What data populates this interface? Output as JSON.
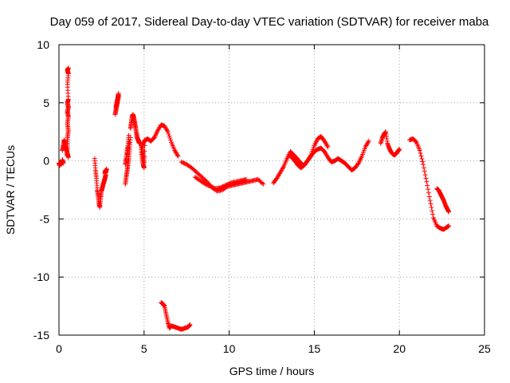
{
  "chart_data": {
    "type": "scatter",
    "title": "Day 059 of 2017, Sidereal Day-to-day VTEC variation (SDTVAR) for receiver maba",
    "xlabel": "GPS time / hours",
    "ylabel": "SDTVAR / TECUs",
    "xlim": [
      0,
      25
    ],
    "ylim": [
      -15,
      10
    ],
    "xticks": [
      0,
      5,
      10,
      15,
      20,
      25
    ],
    "yticks": [
      -15,
      -10,
      -5,
      0,
      5,
      10
    ],
    "xtick_labels": [
      "0",
      "5",
      "10",
      "15",
      "20",
      "25"
    ],
    "ytick_labels": [
      "-15",
      "-10",
      "-5",
      "0",
      "5",
      "10"
    ],
    "grid": true,
    "marker": "+",
    "marker_color": "#ff0000",
    "series": [
      {
        "name": "seg-a",
        "x": [
          0.0,
          0.05,
          0.1,
          0.15,
          0.2,
          0.25
        ],
        "y": [
          -0.2,
          -0.4,
          -0.1,
          -0.3,
          0.1,
          -0.2
        ]
      },
      {
        "name": "seg-b",
        "x": [
          0.2,
          0.25,
          0.3,
          0.35,
          0.4,
          0.45,
          0.5,
          0.55
        ],
        "y": [
          0.9,
          1.3,
          1.8,
          1.5,
          1.1,
          1.0,
          0.6,
          0.3
        ]
      },
      {
        "name": "seg-c",
        "x": [
          0.45,
          0.5,
          0.5,
          0.55,
          0.5,
          0.55,
          0.5,
          0.55,
          0.5,
          0.55,
          0.5,
          0.55,
          0.5,
          0.55
        ],
        "y": [
          0.5,
          1.2,
          2.0,
          2.6,
          3.2,
          3.8,
          4.2,
          4.6,
          5.0,
          5.3,
          6.6,
          7.5,
          7.8,
          8.0
        ]
      },
      {
        "name": "seg-d",
        "x": [
          2.1,
          2.15,
          2.2,
          2.25,
          2.3,
          2.35,
          2.4,
          2.45,
          2.5,
          2.55,
          2.6,
          2.65,
          2.7,
          2.75
        ],
        "y": [
          0.2,
          -0.8,
          -1.5,
          -2.5,
          -3.0,
          -3.6,
          -4.0,
          -3.2,
          -2.6,
          -2.3,
          -2.0,
          -1.8,
          -1.5,
          -1.2
        ]
      },
      {
        "name": "seg-e",
        "x": [
          2.7,
          2.75,
          2.8,
          2.7,
          2.75
        ],
        "y": [
          -0.9,
          -1.0,
          -0.7,
          -1.1,
          -0.8
        ]
      },
      {
        "name": "seg-f",
        "x": [
          3.3,
          3.35,
          3.4,
          3.45,
          3.5,
          3.35,
          3.4,
          3.45,
          3.5
        ],
        "y": [
          4.0,
          4.4,
          4.8,
          5.2,
          5.6,
          4.6,
          5.0,
          5.4,
          5.8
        ]
      },
      {
        "name": "seg-g",
        "x": [
          3.9,
          3.95,
          4.0,
          4.05,
          4.1,
          4.15,
          4.2,
          3.9,
          3.95,
          4.0,
          4.05,
          4.1
        ],
        "y": [
          -2.0,
          -1.4,
          -0.9,
          -0.4,
          0.2,
          1.0,
          2.0,
          -0.3,
          0.2,
          0.8,
          1.3,
          2.2
        ]
      },
      {
        "name": "seg-h",
        "x": [
          4.2,
          4.25,
          4.3,
          4.35,
          4.4,
          4.45,
          4.5,
          4.55,
          4.6,
          4.65,
          4.7,
          4.75
        ],
        "y": [
          2.8,
          3.3,
          3.8,
          4.0,
          3.7,
          3.3,
          2.9,
          2.4,
          2.0,
          1.8,
          1.6,
          1.5
        ]
      },
      {
        "name": "seg-i",
        "x": [
          4.8,
          4.85,
          4.9,
          4.95,
          5.0,
          5.05,
          4.9,
          4.95,
          5.0
        ],
        "y": [
          1.6,
          0.8,
          0.2,
          -0.3,
          -0.6,
          1.8,
          1.2,
          0.6,
          0.0
        ]
      },
      {
        "name": "seg-j",
        "x": [
          5.0,
          5.2,
          5.4,
          5.6,
          5.8,
          6.0,
          6.2,
          6.4,
          6.6,
          6.8,
          7.0
        ],
        "y": [
          1.7,
          1.9,
          1.7,
          2.0,
          2.6,
          3.1,
          3.0,
          2.5,
          1.6,
          0.9,
          0.4
        ]
      },
      {
        "name": "seg-k",
        "x": [
          7.2,
          7.5,
          7.8,
          8.1,
          8.4,
          8.7,
          9.0,
          9.3,
          9.6,
          9.9,
          10.2,
          10.5,
          10.8,
          11.1,
          11.4,
          11.7,
          12.0
        ],
        "y": [
          -0.1,
          -0.3,
          -0.6,
          -1.0,
          -1.4,
          -1.8,
          -2.3,
          -2.6,
          -2.5,
          -2.2,
          -2.1,
          -2.0,
          -1.9,
          -1.8,
          -1.7,
          -1.6,
          -2.0
        ]
      },
      {
        "name": "seg-l",
        "x": [
          8.0,
          8.3,
          8.6,
          8.9,
          9.2,
          9.5,
          9.8,
          10.1,
          10.4,
          10.7,
          11.0
        ],
        "y": [
          -1.4,
          -1.7,
          -2.0,
          -2.2,
          -2.4,
          -2.3,
          -2.1,
          -1.9,
          -1.8,
          -1.7,
          -1.6
        ]
      },
      {
        "name": "seg-m",
        "x": [
          6.0,
          6.1,
          6.2,
          6.3,
          6.4,
          6.5,
          6.6,
          6.8,
          7.0,
          7.2,
          7.4,
          7.6,
          7.7
        ],
        "y": [
          -12.2,
          -12.3,
          -12.5,
          -13.2,
          -13.9,
          -14.4,
          -14.2,
          -14.3,
          -14.4,
          -14.5,
          -14.4,
          -14.3,
          -14.1
        ]
      },
      {
        "name": "seg-n",
        "x": [
          12.6,
          12.8,
          13.0,
          13.2,
          13.4,
          13.6,
          13.8,
          14.0,
          14.2,
          14.4,
          14.6,
          14.8,
          15.0,
          15.2,
          15.4,
          15.6,
          15.8
        ],
        "y": [
          -1.9,
          -1.5,
          -1.0,
          -0.5,
          0.2,
          0.8,
          0.5,
          0.2,
          -0.2,
          -0.4,
          0.0,
          0.5,
          1.3,
          1.9,
          2.1,
          1.7,
          1.2
        ]
      },
      {
        "name": "seg-o",
        "x": [
          13.6,
          13.8,
          14.0,
          14.2,
          14.4,
          14.6,
          14.8,
          15.0,
          15.2,
          15.4,
          15.6,
          15.8,
          16.0,
          16.2,
          16.4,
          16.6,
          16.8,
          17.0,
          17.2,
          17.4,
          17.6,
          17.8,
          18.0,
          18.2
        ],
        "y": [
          0.4,
          0.1,
          -0.3,
          -0.6,
          -0.4,
          0.0,
          0.4,
          0.8,
          1.0,
          1.1,
          0.8,
          0.3,
          -0.1,
          0.0,
          0.2,
          0.0,
          -0.2,
          -0.5,
          -0.8,
          -0.6,
          -0.2,
          0.4,
          1.2,
          1.7
        ]
      },
      {
        "name": "seg-p",
        "x": [
          18.9,
          19.0,
          19.1,
          19.2,
          19.3,
          19.4,
          19.5,
          19.6,
          19.7,
          19.8,
          19.9,
          20.0
        ],
        "y": [
          1.5,
          2.0,
          2.3,
          2.5,
          1.5,
          1.1,
          0.8,
          0.6,
          0.5,
          0.6,
          0.8,
          1.0
        ]
      },
      {
        "name": "seg-q",
        "x": [
          20.6,
          20.8,
          21.0,
          21.2,
          21.4,
          21.6,
          21.8,
          22.0,
          22.2,
          22.4,
          22.6,
          22.8,
          22.9
        ],
        "y": [
          1.8,
          1.9,
          1.6,
          0.9,
          -0.3,
          -1.8,
          -3.4,
          -4.9,
          -5.6,
          -5.8,
          -5.9,
          -5.7,
          -5.6
        ]
      },
      {
        "name": "seg-r",
        "x": [
          22.2,
          22.3,
          22.4,
          22.5,
          22.6,
          22.7,
          22.8,
          22.9
        ],
        "y": [
          -2.4,
          -2.5,
          -2.8,
          -3.1,
          -3.4,
          -3.8,
          -4.1,
          -4.4
        ]
      }
    ]
  }
}
